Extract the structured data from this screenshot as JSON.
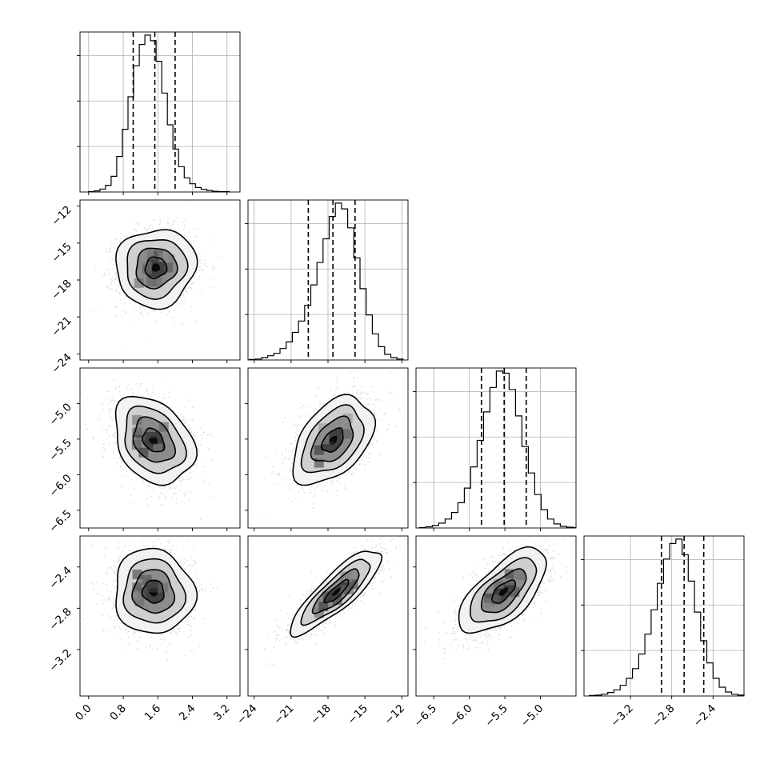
{
  "chart_data": {
    "type": "corner",
    "n_parameters": 4,
    "axis_labels": [],
    "quantiles": [
      0.16,
      0.5,
      0.84
    ],
    "contour_levels": [
      0.5,
      1.0,
      1.5,
      2.0
    ],
    "grid": true,
    "parameters": [
      {
        "range": [
          -0.2,
          3.5
        ],
        "ticks": [
          0.0,
          0.8,
          1.6,
          2.4,
          3.2
        ],
        "tick_labels": [
          "0.0",
          "0.8",
          "1.6",
          "2.4",
          "3.2"
        ],
        "quantile_values": [
          1.03,
          1.53,
          2.0
        ],
        "hist": {
          "bin_edges": [
            0.0,
            0.13,
            0.26,
            0.39,
            0.52,
            0.65,
            0.78,
            0.91,
            1.04,
            1.17,
            1.3,
            1.43,
            1.56,
            1.69,
            1.82,
            1.95,
            2.08,
            2.21,
            2.34,
            2.47,
            2.6,
            2.73,
            2.86,
            2.99,
            3.12,
            3.25
          ],
          "counts": [
            1,
            3,
            8,
            18,
            42,
            95,
            168,
            255,
            338,
            395,
            420,
            405,
            350,
            265,
            180,
            115,
            68,
            38,
            22,
            12,
            7,
            4,
            2,
            1,
            1
          ]
        }
      },
      {
        "range": [
          -24.5,
          -11.5
        ],
        "ticks": [
          -24,
          -21,
          -18,
          -15,
          -12
        ],
        "tick_labels": [
          "−24",
          "−21",
          "−18",
          "−15",
          "−12"
        ],
        "quantile_values": [
          -19.6,
          -17.6,
          -15.8
        ],
        "hist": {
          "bin_edges": [
            -24.4,
            -23.9,
            -23.4,
            -22.9,
            -22.4,
            -21.9,
            -21.4,
            -20.9,
            -20.4,
            -19.9,
            -19.4,
            -18.9,
            -18.4,
            -17.9,
            -17.4,
            -16.9,
            -16.4,
            -15.9,
            -15.4,
            -14.9,
            -14.4,
            -13.9,
            -13.4,
            -12.9,
            -12.4,
            -11.9
          ],
          "counts": [
            1,
            2,
            5,
            9,
            14,
            24,
            38,
            58,
            82,
            115,
            158,
            205,
            255,
            302,
            330,
            318,
            278,
            215,
            150,
            95,
            55,
            28,
            12,
            5,
            2
          ]
        }
      },
      {
        "range": [
          -6.75,
          -4.5
        ],
        "ticks": [
          -6.5,
          -6.0,
          -5.5,
          -5.0
        ],
        "tick_labels": [
          "−6.5",
          "−6.0",
          "−5.5",
          "−5.0"
        ],
        "quantile_values": [
          -5.83,
          -5.51,
          -5.2
        ],
        "hist": {
          "bin_edges": [
            -6.7,
            -6.61,
            -6.52,
            -6.43,
            -6.34,
            -6.25,
            -6.16,
            -6.07,
            -5.98,
            -5.89,
            -5.8,
            -5.71,
            -5.62,
            -5.53,
            -5.44,
            -5.35,
            -5.26,
            -5.17,
            -5.08,
            -4.99,
            -4.9,
            -4.81,
            -4.72,
            -4.63,
            -4.54,
            -4.5
          ],
          "counts": [
            1,
            3,
            6,
            12,
            22,
            38,
            62,
            98,
            150,
            215,
            285,
            345,
            385,
            380,
            340,
            275,
            200,
            135,
            82,
            45,
            22,
            10,
            4,
            2,
            1
          ]
        }
      },
      {
        "range": [
          -3.65,
          -2.1
        ],
        "ticks": [
          -3.2,
          -2.8,
          -2.4
        ],
        "tick_labels": [
          "−3.2",
          "−2.8",
          "−2.4"
        ],
        "quantile_values": [
          -2.9,
          -2.68,
          -2.49
        ],
        "hist": {
          "bin_edges": [
            -3.6,
            -3.54,
            -3.48,
            -3.42,
            -3.36,
            -3.3,
            -3.24,
            -3.18,
            -3.12,
            -3.06,
            -3.0,
            -2.94,
            -2.88,
            -2.82,
            -2.76,
            -2.7,
            -2.64,
            -2.58,
            -2.52,
            -2.46,
            -2.4,
            -2.34,
            -2.28,
            -2.22,
            -2.16,
            -2.1
          ],
          "counts": [
            1,
            2,
            4,
            8,
            14,
            24,
            40,
            62,
            95,
            140,
            195,
            255,
            310,
            345,
            355,
            320,
            260,
            190,
            125,
            75,
            40,
            20,
            9,
            4,
            2
          ]
        }
      }
    ],
    "pairs": [
      {
        "x_param": 0,
        "y_param": 1,
        "mean": [
          1.55,
          -17.0
        ],
        "sd": [
          0.45,
          1.55
        ],
        "corr": 0.05
      },
      {
        "x_param": 0,
        "y_param": 2,
        "mean": [
          1.5,
          -5.52
        ],
        "sd": [
          0.45,
          0.3
        ],
        "corr": -0.3
      },
      {
        "x_param": 0,
        "y_param": 3,
        "mean": [
          1.5,
          -2.64
        ],
        "sd": [
          0.45,
          0.2
        ],
        "corr": -0.05
      },
      {
        "x_param": 1,
        "y_param": 2,
        "mean": [
          -17.6,
          -5.52
        ],
        "sd": [
          1.6,
          0.3
        ],
        "corr": 0.45
      },
      {
        "x_param": 1,
        "y_param": 3,
        "mean": [
          -17.3,
          -2.64
        ],
        "sd": [
          1.8,
          0.2
        ],
        "corr": 0.85
      },
      {
        "x_param": 2,
        "y_param": 3,
        "mean": [
          -5.52,
          -2.64
        ],
        "sd": [
          0.3,
          0.2
        ],
        "corr": 0.65
      }
    ]
  }
}
